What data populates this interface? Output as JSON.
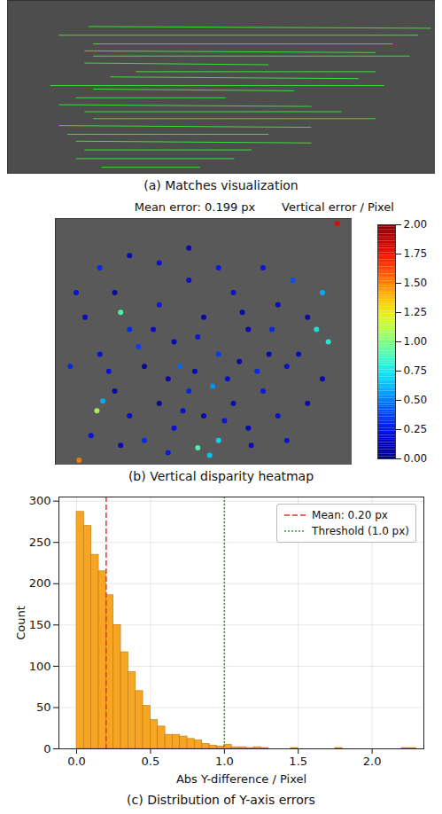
{
  "chart_data": [
    {
      "type": "matches",
      "caption": "(a) Matches visualization",
      "tick_labels": false,
      "color": "#3ddc3d",
      "xlim": [
        0,
        100
      ],
      "ylim": [
        100,
        0
      ],
      "segments": {
        "x1": [
          19,
          12,
          20,
          18,
          20,
          18,
          30,
          24,
          10,
          20,
          16,
          12,
          18,
          20,
          12,
          14,
          16,
          18,
          16,
          22
        ],
        "y1": [
          15,
          20,
          25,
          29,
          32,
          36,
          41,
          44,
          49,
          51,
          56,
          60,
          64,
          68,
          72,
          77,
          81,
          86,
          91,
          96
        ],
        "x2": [
          99,
          96,
          90,
          86,
          94,
          61,
          86,
          82,
          88,
          67,
          51,
          71,
          78,
          86,
          71,
          61,
          71,
          57,
          53,
          45
        ],
        "y2": [
          16,
          20,
          25,
          30,
          32,
          37,
          41,
          45,
          49,
          52,
          56,
          61,
          64,
          68,
          73,
          77,
          82,
          86,
          91,
          96
        ]
      }
    },
    {
      "type": "scatter",
      "title": "Mean error: 0.199 px",
      "caption": "(b) Vertical disparity heatmap",
      "tick_labels": false,
      "xlim": [
        0,
        100
      ],
      "ylim": [
        100,
        0
      ],
      "x": [
        10,
        15,
        20,
        25,
        30,
        35,
        40,
        45,
        50,
        55,
        60,
        65,
        70,
        75,
        80,
        85,
        90,
        88,
        92,
        95,
        20,
        25,
        30,
        35,
        40,
        45,
        50,
        55,
        60,
        65,
        70,
        75,
        48,
        52,
        14,
        16,
        8,
        18,
        28,
        38,
        42,
        58,
        62,
        68,
        72,
        78,
        82,
        15,
        25,
        35,
        45,
        55,
        22,
        33,
        48,
        63,
        73,
        12,
        22,
        38,
        66,
        78,
        85,
        90,
        5,
        7,
        53,
        43,
        57,
        47
      ],
      "y": [
        40,
        55,
        30,
        45,
        60,
        35,
        50,
        25,
        40,
        55,
        30,
        45,
        20,
        35,
        25,
        40,
        30,
        45,
        50,
        2,
        70,
        80,
        90,
        75,
        85,
        70,
        80,
        90,
        75,
        85,
        70,
        80,
        93,
        96,
        78,
        74,
        98,
        62,
        52,
        65,
        60,
        65,
        58,
        62,
        55,
        60,
        55,
        20,
        15,
        18,
        12,
        20,
        38,
        45,
        48,
        38,
        45,
        88,
        92,
        95,
        92,
        90,
        75,
        65,
        60,
        30,
        68,
        78,
        82,
        62
      ],
      "values": [
        0.15,
        0.2,
        0.1,
        0.3,
        0.05,
        0.25,
        0.12,
        0.18,
        0.08,
        0.35,
        0.2,
        0.1,
        0.22,
        0.15,
        0.4,
        0.1,
        0.6,
        0.75,
        0.8,
        1.8,
        0.1,
        0.15,
        0.3,
        0.05,
        0.2,
        0.28,
        0.1,
        0.7,
        0.15,
        0.12,
        0.25,
        0.2,
        0.9,
        0.65,
        1.1,
        0.6,
        1.5,
        0.2,
        0.35,
        0.1,
        0.45,
        0.18,
        0.08,
        0.3,
        0.12,
        0.2,
        0.15,
        0.3,
        0.12,
        0.2,
        0.1,
        0.25,
        0.9,
        0.15,
        0.22,
        0.12,
        0.3,
        0.2,
        0.1,
        0.25,
        0.15,
        0.2,
        0.12,
        0.1,
        0.3,
        0.2,
        0.55,
        0.18,
        0.22,
        0.1
      ],
      "colorbar": {
        "label": "Vertical error / Pixel",
        "range": [
          0,
          2
        ],
        "ticks": [
          {
            "value": 0,
            "label": "0.00"
          },
          {
            "value": 0.25,
            "label": "0.25"
          },
          {
            "value": 0.5,
            "label": "0.50"
          },
          {
            "value": 0.75,
            "label": "0.75"
          },
          {
            "value": 1,
            "label": "1.00"
          },
          {
            "value": 1.25,
            "label": "1.25"
          },
          {
            "value": 1.5,
            "label": "1.50"
          },
          {
            "value": 1.75,
            "label": "1.75"
          },
          {
            "value": 2,
            "label": "2.00"
          }
        ]
      }
    },
    {
      "type": "histogram",
      "caption": "(c) Distribution of Y-axis errors",
      "color": "#f6a623",
      "x_label": "Abs Y-difference / Pixel",
      "y_label": "Count",
      "grid": true,
      "legend": "upper right",
      "bins": [
        0,
        0.05,
        0.1,
        0.15,
        0.2,
        0.25,
        0.3,
        0.35,
        0.4,
        0.45,
        0.5,
        0.55,
        0.6,
        0.65,
        0.7,
        0.75,
        0.8,
        0.85,
        0.9,
        0.95,
        1.0,
        1.05,
        1.1,
        1.15,
        1.2,
        1.25,
        1.3,
        1.35,
        1.4,
        1.45,
        1.5,
        1.55,
        1.6,
        1.65,
        1.7,
        1.75,
        1.8,
        1.85,
        1.9,
        1.95,
        2.0,
        2.05,
        2.1,
        2.15,
        2.2,
        2.25,
        2.3
      ],
      "values": [
        287,
        270,
        235,
        215,
        186,
        150,
        117,
        93,
        70,
        52,
        35,
        27,
        17,
        17,
        15,
        12,
        10,
        6,
        4,
        3,
        5,
        2,
        2,
        1,
        2,
        1,
        0,
        0,
        0,
        1,
        0,
        0,
        0,
        0,
        0,
        1,
        0,
        0,
        0,
        0,
        0,
        0,
        0,
        0,
        1,
        1
      ],
      "xlim": [
        -0.12,
        2.35
      ],
      "ylim": [
        0,
        305
      ],
      "xticks": [
        {
          "value": 0,
          "label": "0.0"
        },
        {
          "value": 0.5,
          "label": "0.5"
        },
        {
          "value": 1,
          "label": "1.0"
        },
        {
          "value": 1.5,
          "label": "1.5"
        },
        {
          "value": 2,
          "label": "2.0"
        }
      ],
      "yticks": [
        0,
        50,
        100,
        150,
        200,
        250,
        300
      ],
      "reference_lines": [
        {
          "name": "Mean: 0.20 px",
          "value": 0.2,
          "color": "#e3342f",
          "line_style": "dashed"
        },
        {
          "name": "Threshold (1.0 px)",
          "value": 1.0,
          "color": "#2ca02c",
          "line_style": "dotted"
        }
      ]
    }
  ]
}
